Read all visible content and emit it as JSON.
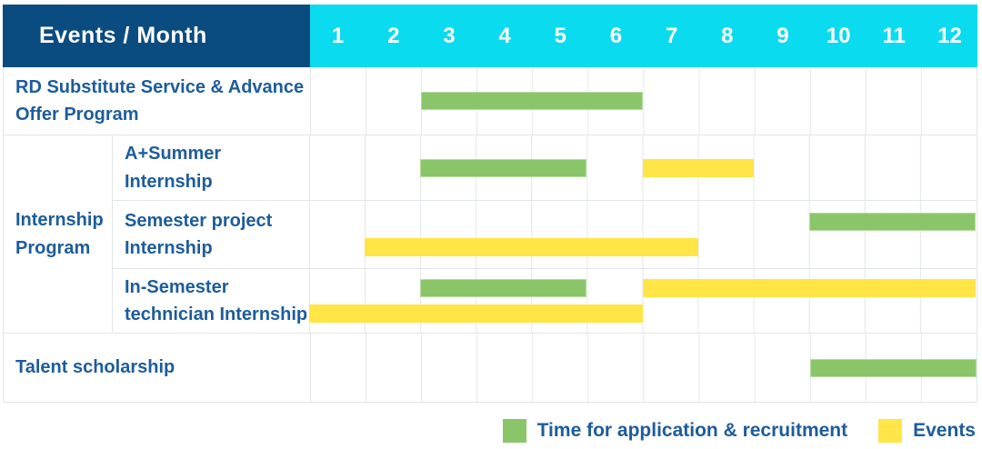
{
  "header": {
    "title": "Events / Month",
    "months": [
      "1",
      "2",
      "3",
      "4",
      "5",
      "6",
      "7",
      "8",
      "9",
      "10",
      "11",
      "12"
    ]
  },
  "legend": {
    "application_label": "Time for application & recruitment",
    "events_label": "Events"
  },
  "colors": {
    "header_navy": "#0a4c80",
    "header_cyan": "#0bdbef",
    "application_green": "#8bc56a",
    "events_yellow": "#ffe546",
    "label_blue": "#1d5c9c",
    "grid_line": "#e2e6e9"
  },
  "chart_data": {
    "type": "bar",
    "subtype": "gantt",
    "title": "Events / Month",
    "xlabel": "Month",
    "x": [
      1,
      2,
      3,
      4,
      5,
      6,
      7,
      8,
      9,
      10,
      11,
      12
    ],
    "xlim": [
      1,
      12
    ],
    "grid": true,
    "legend_position": "bottom-right",
    "legend": [
      {
        "name": "Time for application & recruitment",
        "color": "#8bc56a"
      },
      {
        "name": "Events",
        "color": "#ffe546"
      }
    ],
    "rows": [
      {
        "group": "",
        "label": "RD Substitute Service & Advance Offer Program",
        "bars": [
          {
            "series": "Time for application & recruitment",
            "start_month": 3,
            "end_month": 6
          }
        ]
      },
      {
        "group": "Internship Program",
        "label": "A+Summer Internship",
        "bars": [
          {
            "series": "Time for application & recruitment",
            "start_month": 3,
            "end_month": 5
          },
          {
            "series": "Events",
            "start_month": 7,
            "end_month": 8
          }
        ]
      },
      {
        "group": "Internship Program",
        "label": "Semester project Internship",
        "bars": [
          {
            "series": "Time for application & recruitment",
            "start_month": 10,
            "end_month": 12,
            "lane": "top"
          },
          {
            "series": "Events",
            "start_month": 2,
            "end_month": 7,
            "lane": "bottom"
          }
        ]
      },
      {
        "group": "Internship Program",
        "label": "In-Semester technician Internship",
        "bars": [
          {
            "series": "Time for application & recruitment",
            "start_month": 3,
            "end_month": 5,
            "lane": "top"
          },
          {
            "series": "Events",
            "start_month": 7,
            "end_month": 12,
            "lane": "top"
          },
          {
            "series": "Events",
            "start_month": 1,
            "end_month": 6,
            "lane": "bottom"
          }
        ]
      },
      {
        "group": "",
        "label": "Talent scholarship",
        "bars": [
          {
            "series": "Time for application & recruitment",
            "start_month": 10,
            "end_month": 12
          }
        ]
      }
    ]
  }
}
